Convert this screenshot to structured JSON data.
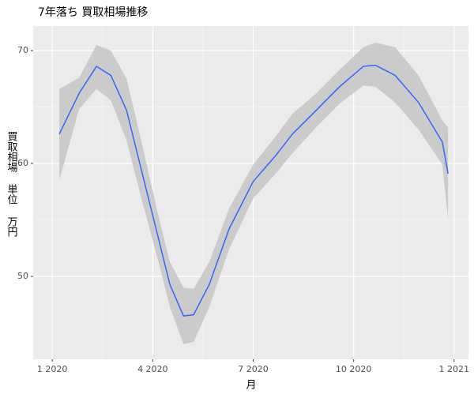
{
  "chart_data": {
    "type": "smooth",
    "title": "7年落ち 買取相場推移",
    "x_label": "月",
    "y_label": "買取相場 単位 万円",
    "x": [
      0.21,
      0.8,
      1.32,
      1.75,
      2.22,
      2.69,
      3.16,
      3.51,
      3.92,
      4.22,
      4.69,
      5.28,
      6.0,
      6.7,
      7.17,
      7.88,
      8.58,
      9.29,
      9.65,
      10.24,
      10.94,
      11.65,
      11.82
    ],
    "values": [
      62.6,
      66.2,
      68.6,
      67.8,
      64.7,
      59.1,
      53.5,
      49.3,
      46.5,
      46.6,
      49.3,
      54.2,
      58.4,
      60.8,
      62.6,
      64.7,
      66.8,
      68.6,
      68.7,
      67.8,
      65.4,
      61.9,
      59.1
    ],
    "upper": [
      66.6,
      67.6,
      70.5,
      70.0,
      67.5,
      61.6,
      55.5,
      51.3,
      49.0,
      48.9,
      51.3,
      56.0,
      59.9,
      62.5,
      64.4,
      66.2,
      68.3,
      70.3,
      70.7,
      70.3,
      67.8,
      63.8,
      63.2
    ],
    "lower": [
      58.5,
      64.8,
      66.6,
      65.6,
      62.0,
      56.6,
      51.4,
      47.3,
      44.0,
      44.2,
      47.3,
      52.4,
      56.9,
      59.2,
      60.9,
      63.2,
      65.3,
      66.9,
      66.8,
      65.4,
      63.0,
      59.9,
      55.1
    ],
    "color": "#3366ff",
    "band_color": "#c8c8c8",
    "xlim": [
      -0.57,
      12.43
    ],
    "ylim": [
      42.66,
      72.17
    ],
    "xticks": [
      {
        "value": 0,
        "label": "1 2020"
      },
      {
        "value": 3,
        "label": "4 2020"
      },
      {
        "value": 6,
        "label": "7 2020"
      },
      {
        "value": 9,
        "label": "10 2020"
      },
      {
        "value": 12,
        "label": "1 2021"
      }
    ],
    "yticks": [
      50,
      60,
      70
    ],
    "grid": true
  }
}
